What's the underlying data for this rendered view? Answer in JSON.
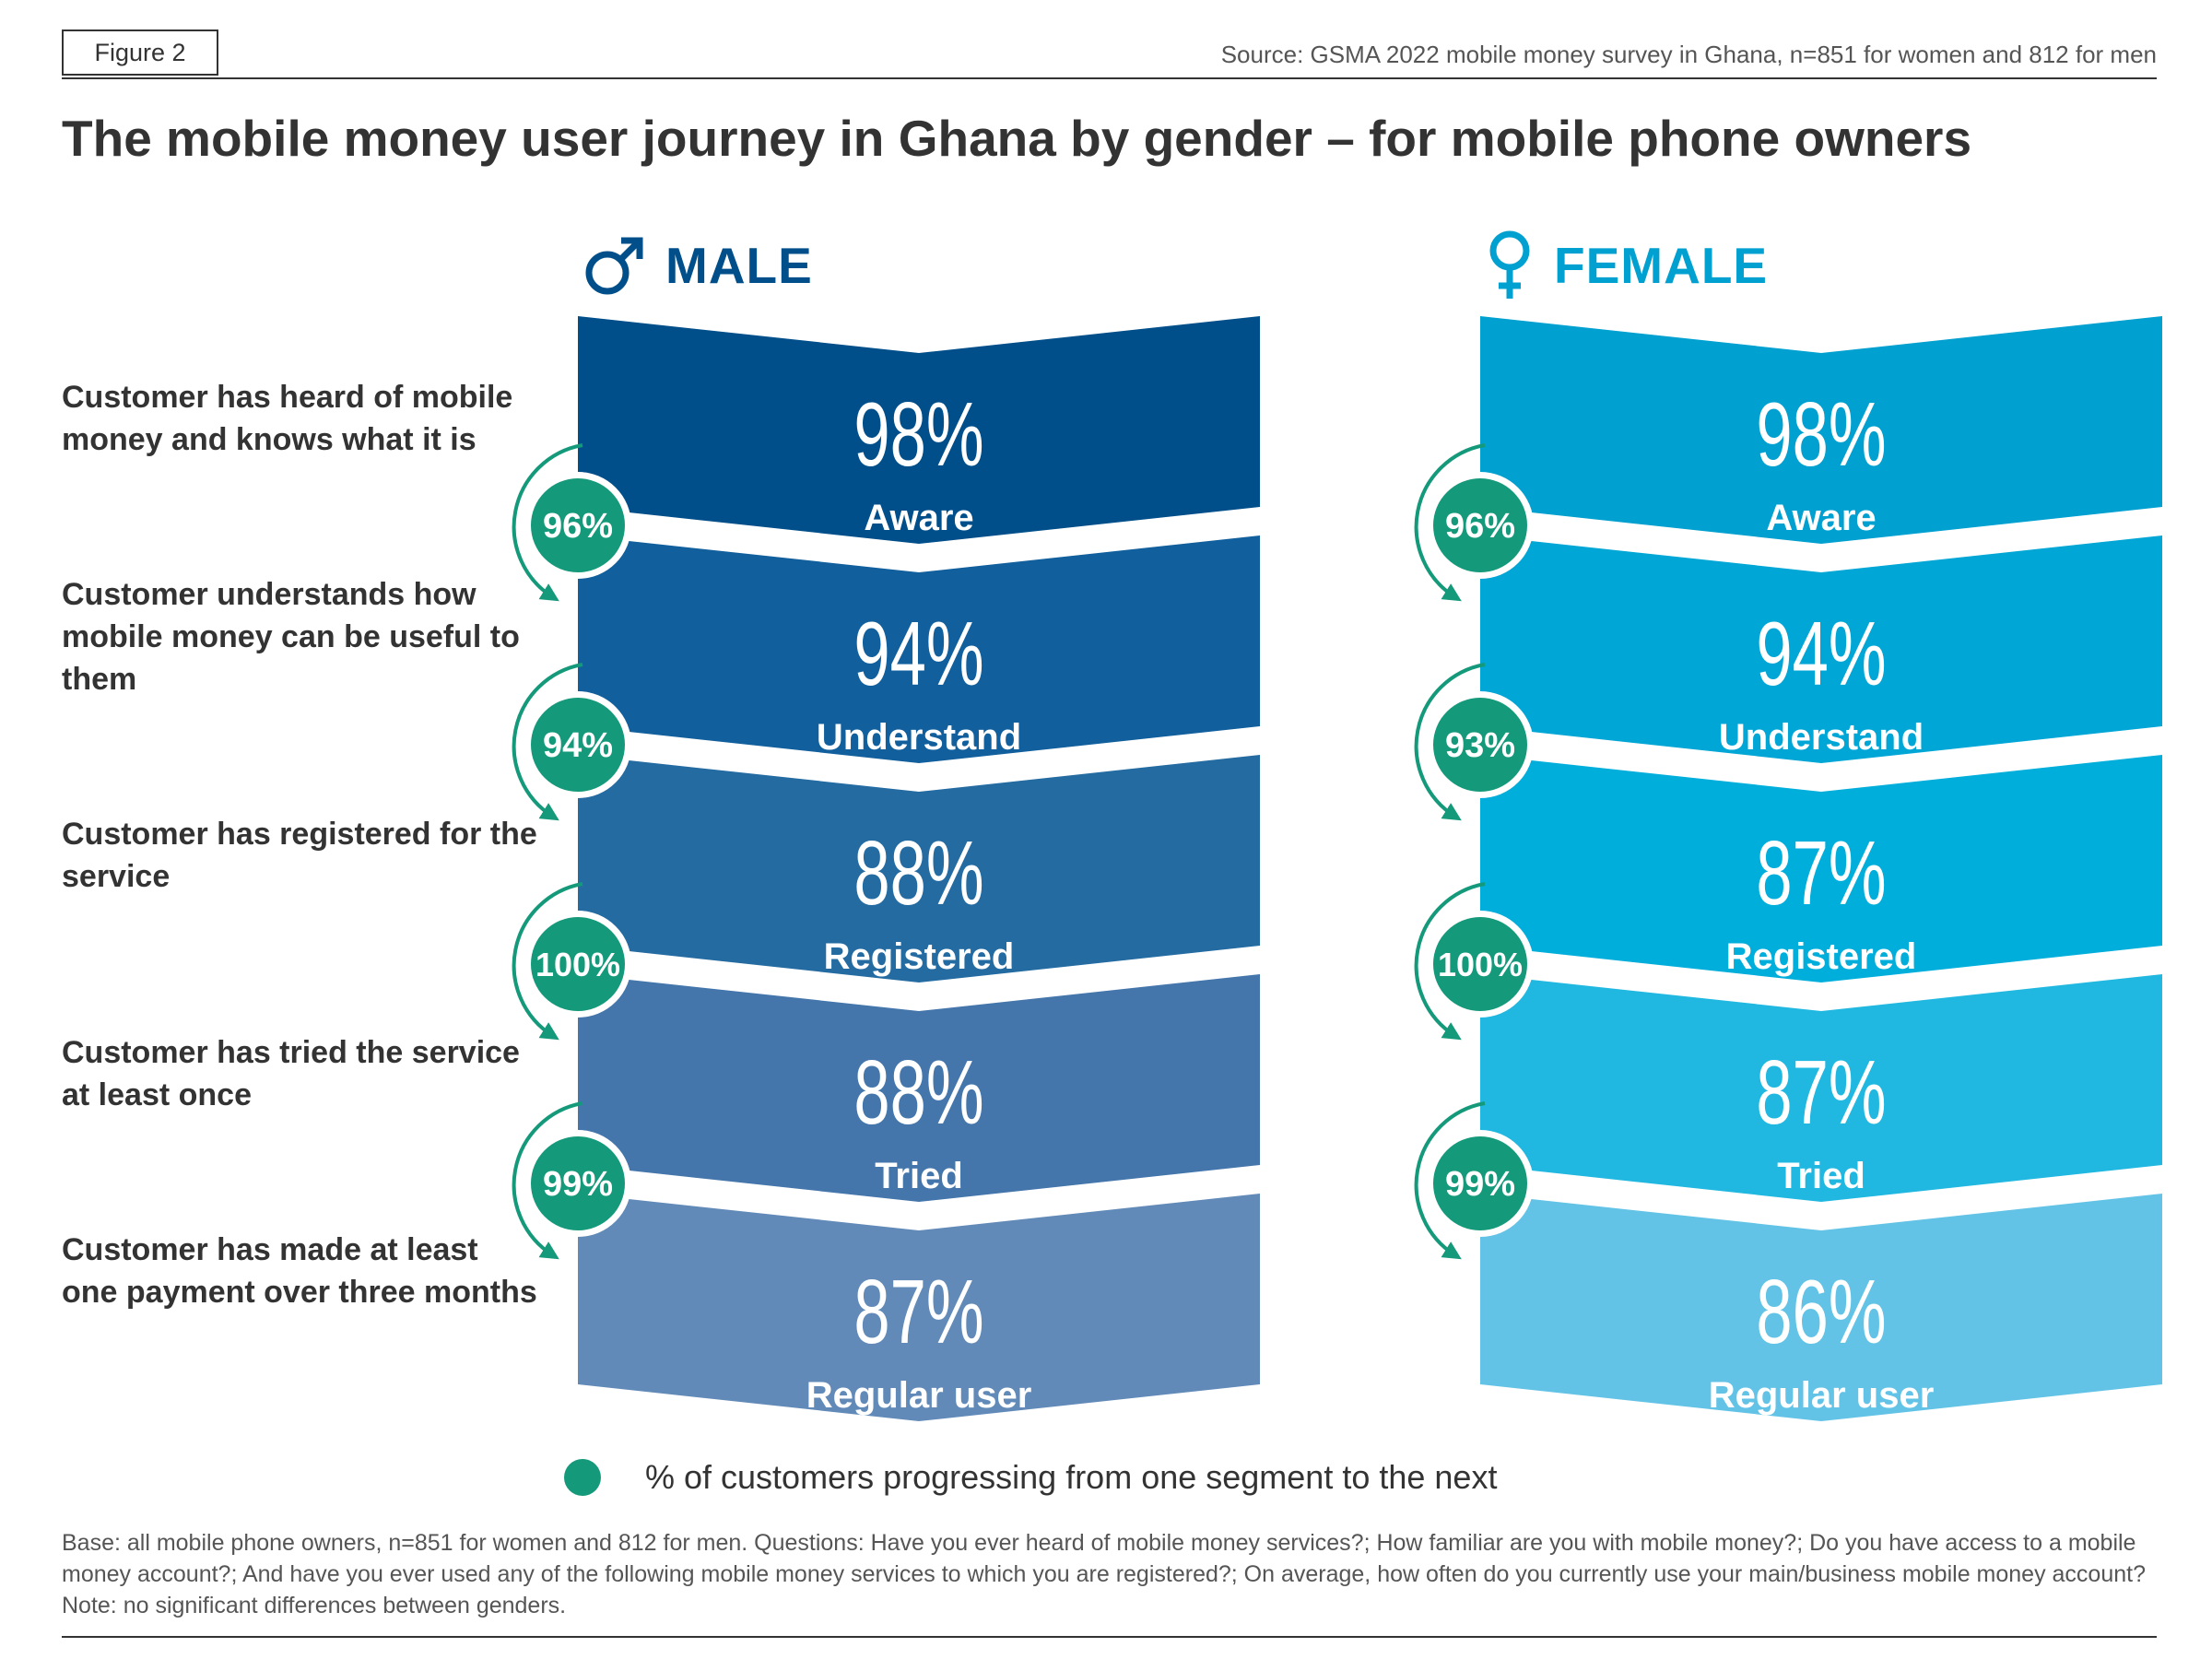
{
  "figure_label": "Figure 2",
  "source": "Source: GSMA 2022 mobile money survey in Ghana, n=851 for women and 812 for men",
  "title": "The mobile money user journey in Ghana by gender – for mobile phone owners",
  "stage_descriptions": [
    "Customer has heard of mobile money and knows what it is",
    "Customer understands how mobile money can be useful to them",
    "Customer has registered for the service",
    "Customer has tried the service at least once",
    "Customer has made at least one payment over three months"
  ],
  "legend": "% of customers progressing from one segment to the next",
  "base_note": "Base: all mobile phone owners, n=851 for women and 812 for men. Questions: Have you ever heard of mobile money services?; How familiar are you with mobile money?; Do you have access to a mobile money account?; And have you ever used any of the following mobile money services to which you are registered?; On average, how often do you currently use your main/business mobile money account? Note: no significant differences between genders.",
  "colors": {
    "male": [
      "#004f8a",
      "#115f9c",
      "#246ba2",
      "#4476ac",
      "#628ab8"
    ],
    "female": [
      "#00a0d0",
      "#00a6d6",
      "#00aedc",
      "#20b8e0",
      "#62c3e6"
    ],
    "male_heading": "#004f8a",
    "female_heading": "#00a0d0",
    "progress_circle": "#14997a"
  },
  "icons": {
    "male": "male-symbol-icon",
    "female": "female-symbol-icon"
  },
  "chart_data": {
    "type": "funnel",
    "stages": [
      "Aware",
      "Understand",
      "Registered",
      "Tried",
      "Regular user"
    ],
    "unit": "%",
    "series": [
      {
        "name": "MALE",
        "values": [
          98,
          94,
          88,
          88,
          87
        ],
        "progression": [
          96,
          94,
          100,
          99
        ]
      },
      {
        "name": "FEMALE",
        "values": [
          98,
          94,
          87,
          87,
          86
        ],
        "progression": [
          96,
          93,
          100,
          99
        ]
      }
    ]
  }
}
